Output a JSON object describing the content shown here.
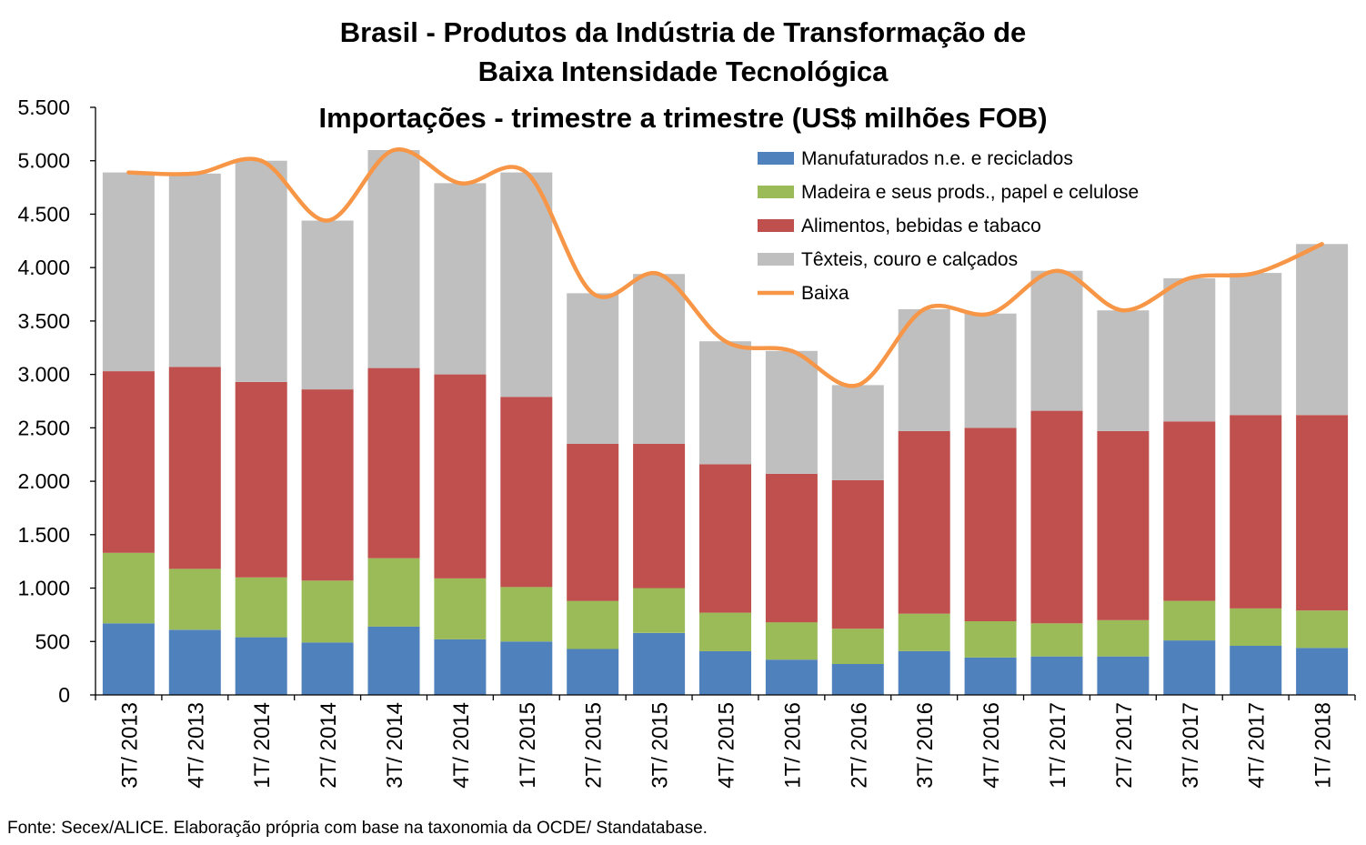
{
  "title_lines": [
    "Brasil - Produtos da Indústria de Transformação de",
    "Baixa Intensidade Tecnológica",
    "Importações - trimestre a trimestre (US$ milhões FOB)"
  ],
  "source_note": "Fonte: Secex/ALICE. Elaboração própria com base na taxonomia da OCDE/ Standatabase.",
  "colors": {
    "manufaturados": "#4f81bd",
    "madeira": "#9bbb59",
    "alimentos": "#c0504d",
    "texteis": "#bfbfbf",
    "baixa": "#f79646"
  },
  "chart_data": {
    "type": "bar",
    "stacked": true,
    "title": "Brasil - Produtos da Indústria de Transformação de Baixa Intensidade Tecnológica Importações - trimestre a trimestre (US$ milhões FOB)",
    "xlabel": "",
    "ylabel": "",
    "ylim": [
      0,
      5500
    ],
    "yticks": [
      0,
      500,
      1000,
      1500,
      2000,
      2500,
      3000,
      3500,
      4000,
      4500,
      5000,
      5500
    ],
    "ytick_labels": [
      "0",
      "500",
      "1.000",
      "1.500",
      "2.000",
      "2.500",
      "3.000",
      "3.500",
      "4.000",
      "4.500",
      "5.000",
      "5.500"
    ],
    "grid": false,
    "legend_position": "top-right",
    "categories": [
      "3T/ 2013",
      "4T/ 2013",
      "1T/ 2014",
      "2T/ 2014",
      "3T/ 2014",
      "4T/ 2014",
      "1T/ 2015",
      "2T/ 2015",
      "3T/ 2015",
      "4T/ 2015",
      "1T/ 2016",
      "2T/ 2016",
      "3T/ 2016",
      "4T/ 2016",
      "1T/ 2017",
      "2T/ 2017",
      "3T/ 2017",
      "4T/ 2017",
      "1T/ 2018"
    ],
    "series": [
      {
        "name": "Manufaturados n.e. e reciclados",
        "kind": "bar",
        "color_key": "manufaturados",
        "values": [
          670,
          610,
          540,
          490,
          640,
          520,
          500,
          430,
          580,
          410,
          330,
          290,
          410,
          350,
          360,
          360,
          510,
          460,
          440
        ]
      },
      {
        "name": "Madeira e seus prods., papel e celulose",
        "kind": "bar",
        "color_key": "madeira",
        "values": [
          660,
          570,
          560,
          580,
          640,
          570,
          510,
          450,
          420,
          360,
          350,
          330,
          350,
          340,
          310,
          340,
          370,
          350,
          350
        ]
      },
      {
        "name": "Alimentos, bebidas e tabaco",
        "kind": "bar",
        "color_key": "alimentos",
        "values": [
          1700,
          1890,
          1830,
          1790,
          1780,
          1910,
          1780,
          1470,
          1350,
          1390,
          1390,
          1390,
          1710,
          1810,
          1990,
          1770,
          1680,
          1810,
          1830
        ]
      },
      {
        "name": "Têxteis, couro e calçados",
        "kind": "bar",
        "color_key": "texteis",
        "values": [
          1860,
          1810,
          2070,
          1580,
          2040,
          1790,
          2100,
          1410,
          1590,
          1150,
          1150,
          890,
          1140,
          1070,
          1310,
          1130,
          1340,
          1330,
          1600
        ]
      },
      {
        "name": "Baixa",
        "kind": "line",
        "color_key": "baixa",
        "values": [
          4890,
          4880,
          5000,
          4440,
          5100,
          4790,
          4890,
          3760,
          3940,
          3310,
          3220,
          2900,
          3610,
          3570,
          3970,
          3600,
          3900,
          3950,
          4220
        ]
      }
    ]
  }
}
